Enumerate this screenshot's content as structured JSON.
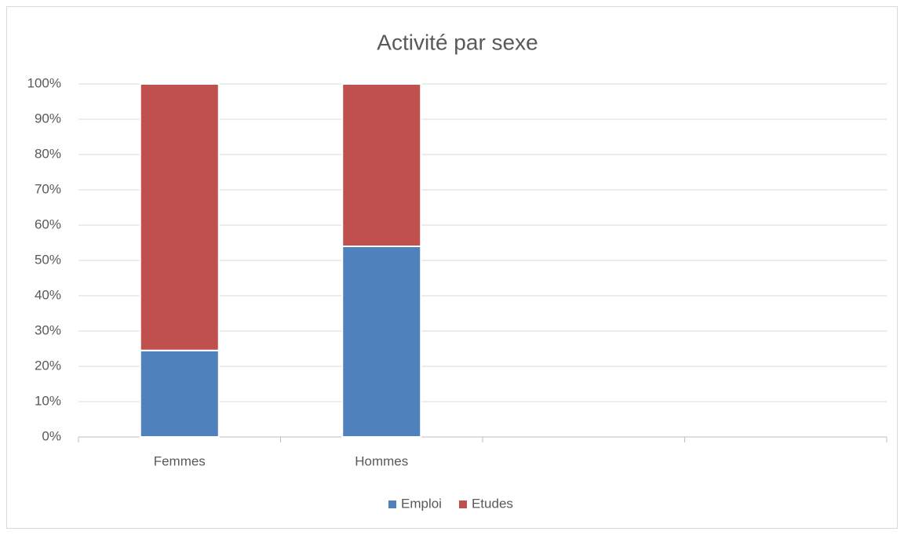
{
  "chart_data": {
    "type": "stacked_bar",
    "title": "Activité par sexe",
    "categories": [
      "Femmes",
      "Hommes",
      null,
      null
    ],
    "series": [
      {
        "name": "Emploi",
        "color": "#4f81bd",
        "values": [
          24.5,
          54,
          null,
          null
        ]
      },
      {
        "name": "Etudes",
        "color": "#c0504d",
        "values": [
          75.5,
          46,
          null,
          null
        ]
      }
    ],
    "ylim": [
      0,
      100
    ],
    "yticks": [
      {
        "value": 0,
        "label": "0%"
      },
      {
        "value": 10,
        "label": "10%"
      },
      {
        "value": 20,
        "label": "20%"
      },
      {
        "value": 30,
        "label": "30%"
      },
      {
        "value": 40,
        "label": "40%"
      },
      {
        "value": 50,
        "label": "50%"
      },
      {
        "value": 60,
        "label": "60%"
      },
      {
        "value": 70,
        "label": "70%"
      },
      {
        "value": 80,
        "label": "80%"
      },
      {
        "value": 90,
        "label": "90%"
      },
      {
        "value": 100,
        "label": "100%"
      }
    ],
    "grid": true,
    "legend": "bottom"
  }
}
